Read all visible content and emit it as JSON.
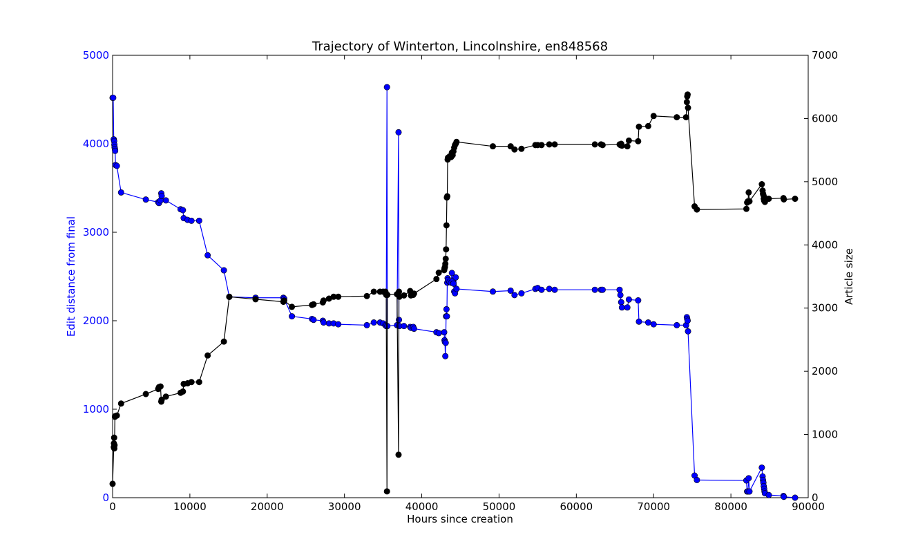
{
  "chart_data": {
    "type": "line",
    "title": "Trajectory of Winterton, Lincolnshire, en848568",
    "xlabel": "Hours since creation",
    "ylabel_left": "Edit distance from final",
    "ylabel_right": "Article size",
    "xlim": [
      0,
      90000
    ],
    "ylim_left": [
      0,
      5000
    ],
    "ylim_right": [
      0,
      7000
    ],
    "x_ticks": [
      0,
      10000,
      20000,
      30000,
      40000,
      50000,
      60000,
      70000,
      80000,
      90000
    ],
    "y_left_ticks": [
      0,
      1000,
      2000,
      3000,
      4000,
      5000
    ],
    "y_right_ticks": [
      0,
      1000,
      2000,
      3000,
      4000,
      5000,
      6000,
      7000
    ],
    "grid": false,
    "series": [
      {
        "axis": "left",
        "color": "#0000ff",
        "points": [
          [
            0,
            4520
          ],
          [
            80,
            4520
          ],
          [
            150,
            4050
          ],
          [
            200,
            4030
          ],
          [
            230,
            3990
          ],
          [
            260,
            3960
          ],
          [
            300,
            3940
          ],
          [
            330,
            3920
          ],
          [
            380,
            3760
          ],
          [
            550,
            3750
          ],
          [
            1100,
            3450
          ],
          [
            4300,
            3370
          ],
          [
            5900,
            3340
          ],
          [
            6000,
            3330
          ],
          [
            6200,
            3360
          ],
          [
            6300,
            3440
          ],
          [
            6350,
            3410
          ],
          [
            6900,
            3360
          ],
          [
            8800,
            3260
          ],
          [
            9100,
            3250
          ],
          [
            9200,
            3160
          ],
          [
            9700,
            3140
          ],
          [
            10200,
            3130
          ],
          [
            11200,
            3130
          ],
          [
            12300,
            2740
          ],
          [
            14400,
            2570
          ],
          [
            15100,
            2270
          ],
          [
            18500,
            2260
          ],
          [
            22100,
            2260
          ],
          [
            22200,
            2250
          ],
          [
            23200,
            2050
          ],
          [
            25800,
            2020
          ],
          [
            26000,
            2010
          ],
          [
            27200,
            2000
          ],
          [
            27300,
            1980
          ],
          [
            28000,
            1970
          ],
          [
            28600,
            1970
          ],
          [
            29200,
            1960
          ],
          [
            32900,
            1950
          ],
          [
            33800,
            1980
          ],
          [
            34600,
            1980
          ],
          [
            35000,
            1970
          ],
          [
            35300,
            1950
          ],
          [
            35400,
            1940
          ],
          [
            35500,
            4640
          ],
          [
            35550,
            1940
          ],
          [
            36800,
            1950
          ],
          [
            37000,
            4130
          ],
          [
            37050,
            2010
          ],
          [
            37100,
            1940
          ],
          [
            37700,
            1940
          ],
          [
            38500,
            1930
          ],
          [
            38600,
            1920
          ],
          [
            38900,
            1930
          ],
          [
            39000,
            1910
          ],
          [
            41900,
            1870
          ],
          [
            42200,
            1860
          ],
          [
            42900,
            1870
          ],
          [
            42950,
            1780
          ],
          [
            43000,
            1760
          ],
          [
            43050,
            1600
          ],
          [
            43100,
            1750
          ],
          [
            43150,
            2050
          ],
          [
            43200,
            2130
          ],
          [
            43250,
            2050
          ],
          [
            43300,
            2430
          ],
          [
            43350,
            2480
          ],
          [
            43400,
            2460
          ],
          [
            43600,
            2440
          ],
          [
            43800,
            2430
          ],
          [
            43900,
            2540
          ],
          [
            44000,
            2450
          ],
          [
            44100,
            2420
          ],
          [
            44200,
            2330
          ],
          [
            44300,
            2310
          ],
          [
            44400,
            2490
          ],
          [
            44500,
            2360
          ],
          [
            49200,
            2330
          ],
          [
            51500,
            2340
          ],
          [
            52000,
            2290
          ],
          [
            52900,
            2310
          ],
          [
            54700,
            2360
          ],
          [
            55000,
            2370
          ],
          [
            55500,
            2350
          ],
          [
            56500,
            2360
          ],
          [
            57200,
            2350
          ],
          [
            62400,
            2350
          ],
          [
            63200,
            2350
          ],
          [
            63400,
            2350
          ],
          [
            65600,
            2350
          ],
          [
            65700,
            2290
          ],
          [
            65800,
            2210
          ],
          [
            65900,
            2150
          ],
          [
            66600,
            2150
          ],
          [
            66800,
            2240
          ],
          [
            68000,
            2230
          ],
          [
            68100,
            1990
          ],
          [
            69300,
            1980
          ],
          [
            70000,
            1960
          ],
          [
            73000,
            1950
          ],
          [
            74200,
            1950
          ],
          [
            74300,
            2040
          ],
          [
            74350,
            2020
          ],
          [
            74400,
            2000
          ],
          [
            74450,
            1880
          ],
          [
            75300,
            250
          ],
          [
            75600,
            200
          ],
          [
            82000,
            195
          ],
          [
            82100,
            70
          ],
          [
            82200,
            70
          ],
          [
            82300,
            220
          ],
          [
            82400,
            70
          ],
          [
            84000,
            340
          ],
          [
            84100,
            240
          ],
          [
            84150,
            200
          ],
          [
            84200,
            170
          ],
          [
            84250,
            130
          ],
          [
            84300,
            100
          ],
          [
            84350,
            70
          ],
          [
            84400,
            50
          ],
          [
            84900,
            30
          ],
          [
            86800,
            20
          ],
          [
            86850,
            10
          ],
          [
            88300,
            0
          ]
        ]
      },
      {
        "axis": "right",
        "color": "#000000",
        "points": [
          [
            0,
            220
          ],
          [
            150,
            800
          ],
          [
            170,
            860
          ],
          [
            200,
            950
          ],
          [
            220,
            780
          ],
          [
            250,
            830
          ],
          [
            300,
            1280
          ],
          [
            330,
            1290
          ],
          [
            550,
            1300
          ],
          [
            1100,
            1490
          ],
          [
            4300,
            1640
          ],
          [
            5900,
            1720
          ],
          [
            6000,
            1750
          ],
          [
            6200,
            1760
          ],
          [
            6300,
            1520
          ],
          [
            6350,
            1550
          ],
          [
            6900,
            1600
          ],
          [
            8800,
            1660
          ],
          [
            9100,
            1680
          ],
          [
            9200,
            1800
          ],
          [
            9700,
            1810
          ],
          [
            10200,
            1830
          ],
          [
            11200,
            1830
          ],
          [
            12300,
            2250
          ],
          [
            14400,
            2470
          ],
          [
            15100,
            3180
          ],
          [
            18500,
            3140
          ],
          [
            22100,
            3100
          ],
          [
            22200,
            3120
          ],
          [
            23200,
            3020
          ],
          [
            25800,
            3050
          ],
          [
            26000,
            3060
          ],
          [
            27200,
            3090
          ],
          [
            27300,
            3120
          ],
          [
            28000,
            3150
          ],
          [
            28600,
            3180
          ],
          [
            29200,
            3180
          ],
          [
            32900,
            3190
          ],
          [
            33800,
            3260
          ],
          [
            34600,
            3260
          ],
          [
            35000,
            3260
          ],
          [
            35300,
            3260
          ],
          [
            35400,
            3210
          ],
          [
            35500,
            100
          ],
          [
            35550,
            3210
          ],
          [
            36800,
            3220
          ],
          [
            37000,
            680
          ],
          [
            37050,
            3260
          ],
          [
            37100,
            3180
          ],
          [
            37700,
            3200
          ],
          [
            38500,
            3270
          ],
          [
            38600,
            3200
          ],
          [
            38900,
            3210
          ],
          [
            39000,
            3230
          ],
          [
            41900,
            3460
          ],
          [
            42200,
            3560
          ],
          [
            42900,
            3600
          ],
          [
            42950,
            3630
          ],
          [
            43000,
            3650
          ],
          [
            43050,
            3700
          ],
          [
            43100,
            3780
          ],
          [
            43150,
            3930
          ],
          [
            43200,
            4310
          ],
          [
            43250,
            4750
          ],
          [
            43300,
            4770
          ],
          [
            43350,
            5350
          ],
          [
            43400,
            5380
          ],
          [
            43600,
            5400
          ],
          [
            43800,
            5390
          ],
          [
            43900,
            5460
          ],
          [
            44000,
            5420
          ],
          [
            44100,
            5480
          ],
          [
            44200,
            5540
          ],
          [
            44300,
            5580
          ],
          [
            44400,
            5600
          ],
          [
            44500,
            5630
          ],
          [
            49200,
            5560
          ],
          [
            51500,
            5560
          ],
          [
            52000,
            5510
          ],
          [
            52900,
            5520
          ],
          [
            54700,
            5580
          ],
          [
            55000,
            5580
          ],
          [
            55500,
            5580
          ],
          [
            56500,
            5590
          ],
          [
            57200,
            5590
          ],
          [
            62400,
            5590
          ],
          [
            63200,
            5590
          ],
          [
            63400,
            5580
          ],
          [
            65600,
            5590
          ],
          [
            65700,
            5580
          ],
          [
            65800,
            5600
          ],
          [
            65900,
            5570
          ],
          [
            66600,
            5560
          ],
          [
            66800,
            5650
          ],
          [
            68000,
            5640
          ],
          [
            68100,
            5870
          ],
          [
            69300,
            5880
          ],
          [
            70000,
            6040
          ],
          [
            73000,
            6020
          ],
          [
            74200,
            6020
          ],
          [
            74300,
            6260
          ],
          [
            74350,
            6350
          ],
          [
            74400,
            6380
          ],
          [
            74450,
            6170
          ],
          [
            75300,
            4610
          ],
          [
            75600,
            4560
          ],
          [
            82000,
            4570
          ],
          [
            82100,
            4670
          ],
          [
            82200,
            4690
          ],
          [
            82300,
            4830
          ],
          [
            82400,
            4690
          ],
          [
            84000,
            4960
          ],
          [
            84100,
            4860
          ],
          [
            84150,
            4810
          ],
          [
            84200,
            4790
          ],
          [
            84250,
            4730
          ],
          [
            84300,
            4700
          ],
          [
            84350,
            4750
          ],
          [
            84400,
            4680
          ],
          [
            84900,
            4730
          ],
          [
            86800,
            4740
          ],
          [
            86850,
            4720
          ],
          [
            88300,
            4730
          ]
        ]
      }
    ]
  }
}
